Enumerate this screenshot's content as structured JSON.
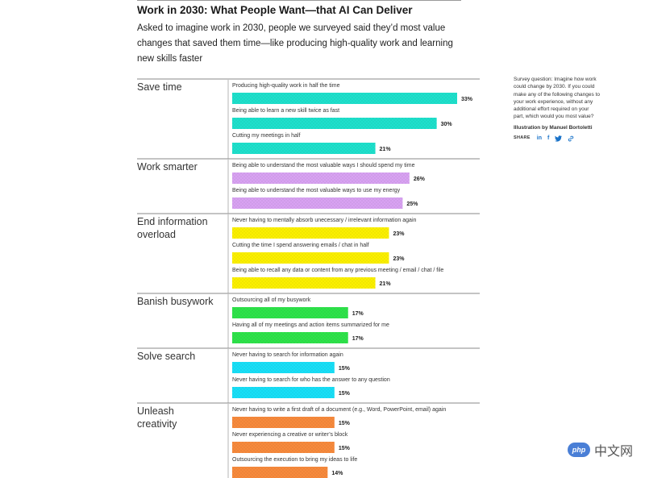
{
  "header": {
    "title": "Work in 2030: What People Want—that AI Can Deliver",
    "subtitle": "Asked to imagine work in 2030, people we surveyed said they’d most value changes that saved them time—like producing high-quality work and learning new skills faster"
  },
  "sidebar": {
    "survey_note": "Survey question: Imagine how work could change by 2030. If you could make any of the following changes to your work experience, without any additional effort required on your part, which would you most value?",
    "credit": "Illustration by Manuel Bortoletti",
    "share_label": "SHARE",
    "share_icons": [
      "linkedin-icon",
      "facebook-icon",
      "twitter-icon",
      "link-icon"
    ]
  },
  "watermark": {
    "badge": "php",
    "text": "中文网"
  },
  "chart_data": {
    "type": "bar",
    "orientation": "horizontal",
    "value_unit": "%",
    "xlim": [
      0,
      33
    ],
    "grid": false,
    "groups": [
      {
        "name": "Save time",
        "color": "#1ee0cc",
        "items": [
          {
            "label": "Producing high-quality work in half the time",
            "value": 33
          },
          {
            "label": "Being able to learn a new skill twice as fast",
            "value": 30
          },
          {
            "label": "Cutting my meetings in half",
            "value": 21
          }
        ]
      },
      {
        "name": "Work smarter",
        "color": "#d8a2f2",
        "items": [
          {
            "label": "Being able to understand the most valuable ways I should spend my time",
            "value": 26
          },
          {
            "label": "Being able to understand the most valuable ways to use my energy",
            "value": 25
          }
        ]
      },
      {
        "name": "End information overload",
        "color": "#fbf000",
        "items": [
          {
            "label": "Never having to mentally absorb unecessary / irrelevant information again",
            "value": 23
          },
          {
            "label": "Cutting the time I spend answering emails / chat in half",
            "value": 23
          },
          {
            "label": "Being able to recall any data or content from any previous meeting / email / chat / file",
            "value": 21
          }
        ]
      },
      {
        "name": "Banish busywork",
        "color": "#2ee34a",
        "items": [
          {
            "label": "Outsourcing all of my busywork",
            "value": 17
          },
          {
            "label": "Having all of my meetings and action items summarized for me",
            "value": 17
          }
        ]
      },
      {
        "name": "Solve search",
        "color": "#18dff7",
        "items": [
          {
            "label": "Never having to search for information again",
            "value": 15
          },
          {
            "label": "Never having to search for who has the answer to any question",
            "value": 15
          }
        ]
      },
      {
        "name": "Unleash creativity",
        "color": "#f78a3c",
        "items": [
          {
            "label": "Never having to write a first draft of a document (e.g., Word, PowerPoint, email) again",
            "value": 15
          },
          {
            "label": "Never experiencing a creative or writer’s block",
            "value": 15
          },
          {
            "label": "Outsourcing the execution to bring my ideas to life",
            "value": 14
          }
        ]
      }
    ]
  }
}
